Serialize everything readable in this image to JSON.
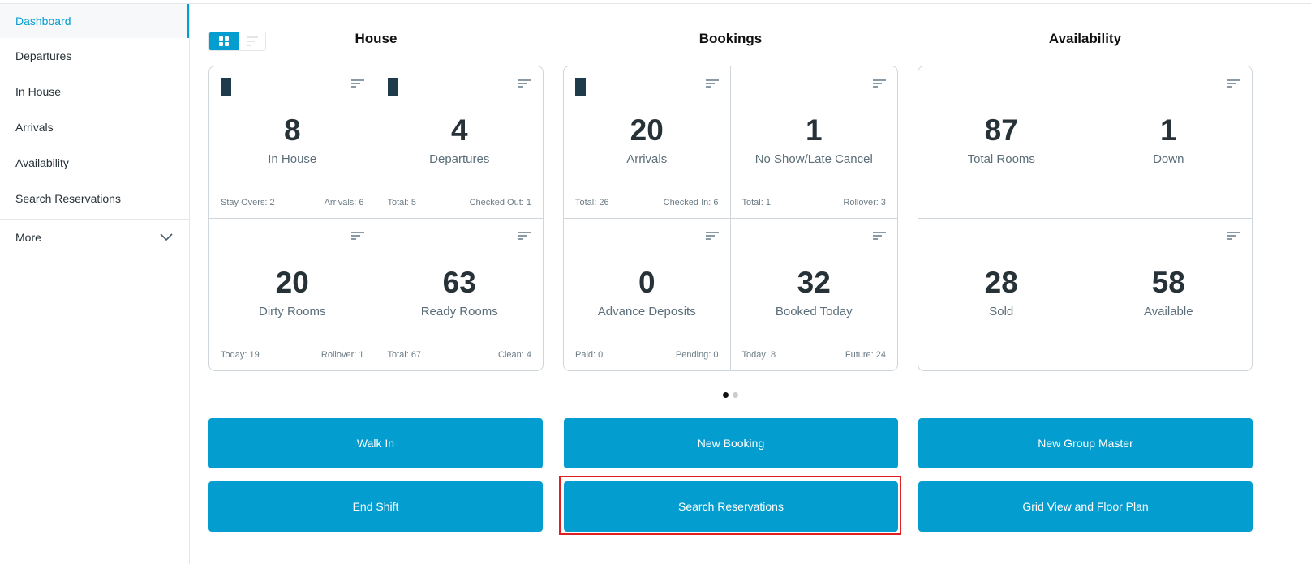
{
  "sidebar": {
    "items": [
      {
        "label": "Dashboard",
        "active": true
      },
      {
        "label": "Departures"
      },
      {
        "label": "In House"
      },
      {
        "label": "Arrivals"
      },
      {
        "label": "Availability"
      },
      {
        "label": "Search Reservations"
      }
    ],
    "more": "More"
  },
  "view_toggle": {
    "grid": "grid-icon",
    "list": "list-icon",
    "selected": "grid"
  },
  "sections": [
    {
      "title": "House",
      "cells": [
        {
          "value": "8",
          "label": "In House",
          "logo": true,
          "footer_left": "Stay Overs: 2",
          "footer_right": "Arrivals: 6"
        },
        {
          "value": "4",
          "label": "Departures",
          "logo": true,
          "footer_left": "Total: 5",
          "footer_right": "Checked Out: 1"
        },
        {
          "value": "20",
          "label": "Dirty Rooms",
          "footer_left": "Today: 19",
          "footer_right": "Rollover: 1"
        },
        {
          "value": "63",
          "label": "Ready Rooms",
          "footer_left": "Total: 67",
          "footer_right": "Clean: 4"
        }
      ]
    },
    {
      "title": "Bookings",
      "cells": [
        {
          "value": "20",
          "label": "Arrivals",
          "logo": true,
          "footer_left": "Total: 26",
          "footer_right": "Checked In: 6"
        },
        {
          "value": "1",
          "label": "No Show/Late Cancel",
          "footer_left": "Total: 1",
          "footer_right": "Rollover: 3"
        },
        {
          "value": "0",
          "label": "Advance Deposits",
          "footer_left": "Paid: 0",
          "footer_right": "Pending: 0"
        },
        {
          "value": "32",
          "label": "Booked Today",
          "footer_left": "Today: 8",
          "footer_right": "Future: 24"
        }
      ]
    },
    {
      "title": "Availability",
      "cells": [
        {
          "value": "87",
          "label": "Total Rooms",
          "nofilter": true
        },
        {
          "value": "1",
          "label": "Down"
        },
        {
          "value": "28",
          "label": "Sold",
          "nofilter": true
        },
        {
          "value": "58",
          "label": "Available"
        }
      ]
    }
  ],
  "pagination": {
    "pages": 2,
    "current": 1
  },
  "buttons": [
    "Walk In",
    "New Booking",
    "New Group Master",
    "End Shift",
    "Search Reservations",
    "Grid View and Floor Plan"
  ],
  "highlighted_button": "Search Reservations",
  "colors": {
    "accent": "#039dcf",
    "highlight": "#e02020"
  }
}
